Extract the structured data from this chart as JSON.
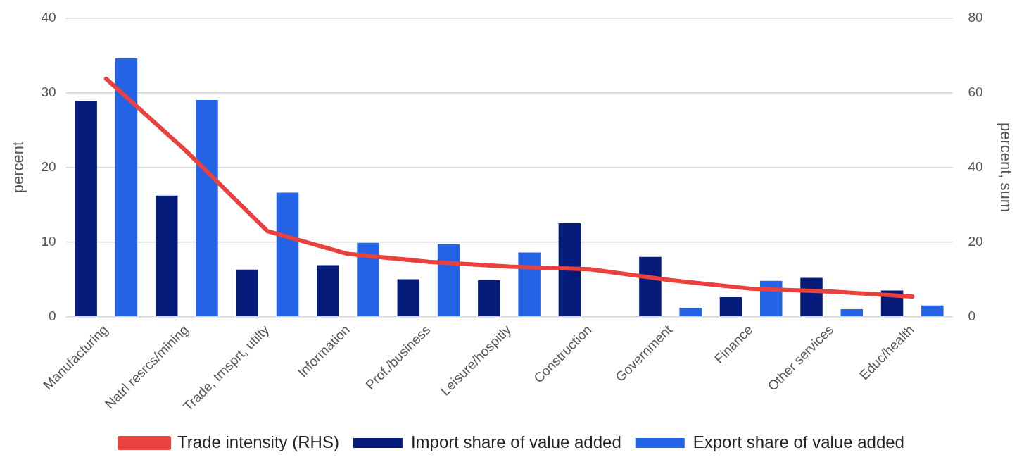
{
  "chart_data": {
    "type": "bar",
    "ylabel": "percent",
    "y2label": "percent, sum",
    "categories": [
      "Manufacturing",
      "Natrl resrcs/mining",
      "Trade, trnsprt, utilty",
      "Information",
      "Prof./business",
      "Leisure/hospitly",
      "Construction",
      "Government",
      "Finance",
      "Other services",
      "Educ/health"
    ],
    "series": [
      {
        "name": "Import share of value added",
        "color": "#051c7a",
        "values": [
          28.9,
          16.2,
          6.3,
          6.9,
          5.0,
          4.9,
          12.5,
          8.0,
          2.6,
          5.2,
          3.5
        ]
      },
      {
        "name": "Export share of value added",
        "color": "#2563e6",
        "values": [
          34.6,
          29.0,
          16.6,
          9.9,
          9.7,
          8.6,
          null,
          1.2,
          4.8,
          1.0,
          1.5
        ]
      },
      {
        "name": "Trade intensity (RHS)",
        "type": "line",
        "axis": "y2",
        "color": "#e8413e",
        "values": [
          63.7,
          44.2,
          22.9,
          16.8,
          14.7,
          13.4,
          12.7,
          9.8,
          7.5,
          6.7,
          5.4
        ]
      }
    ],
    "ylim": [
      0,
      40
    ],
    "yticks": [
      0,
      10,
      20,
      30,
      40
    ],
    "y2lim": [
      0,
      80
    ],
    "y2ticks": [
      0,
      20,
      40,
      60,
      80
    ],
    "grid": "y",
    "legend": "bottom",
    "marker": "none",
    "line_style": "solid"
  }
}
